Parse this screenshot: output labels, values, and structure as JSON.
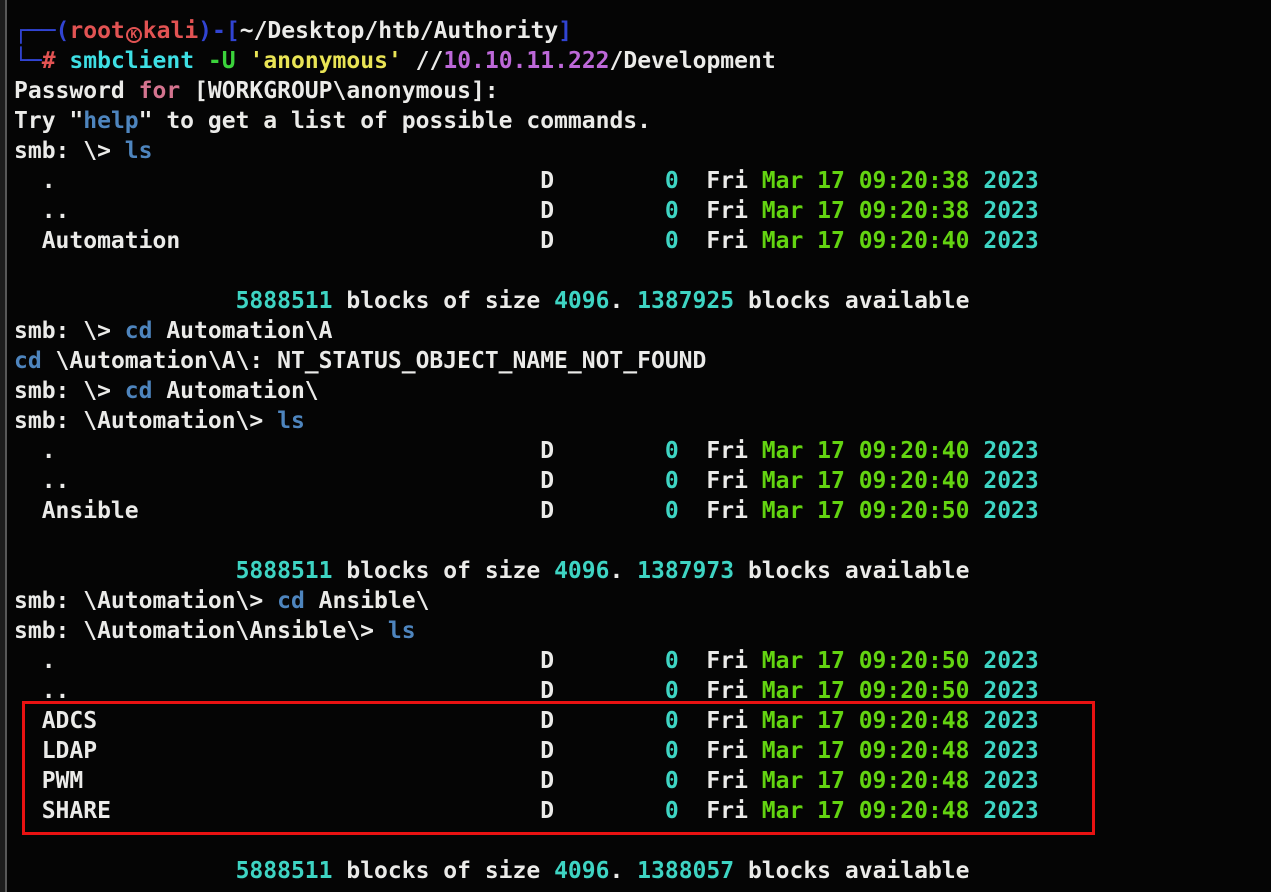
{
  "terminal": {
    "palette": {
      "fg": "#ebebe9",
      "frame": "#3144d3",
      "red": "#e25353",
      "cyan": "#3edfe4",
      "green": "#3bd33b",
      "yellow": "#e9e455",
      "purple": "#bd68d8",
      "pink": "#d4748f",
      "cmd": "#4e85be",
      "date": "#63d411",
      "num": "#3ed4c3"
    },
    "highlight": {
      "color": "#e91212"
    },
    "layout_columns": {
      "attr_col": 38,
      "size_col": 47,
      "date_col": 50
    },
    "lines": [
      {
        "type": "seg",
        "name": "prompt-line-1",
        "segs": [
          {
            "t": "┌──(",
            "c": "frame"
          },
          {
            "t": "root",
            "c": "red",
            "b": true
          },
          {
            "t": "K",
            "c": "red",
            "icon": true
          },
          {
            "t": "kali",
            "c": "red",
            "b": true
          },
          {
            "t": ")-[",
            "c": "frame"
          },
          {
            "t": "~/Desktop/htb/Authority",
            "c": "fg",
            "b": true
          },
          {
            "t": "]",
            "c": "frame"
          }
        ]
      },
      {
        "type": "seg",
        "name": "prompt-line-2",
        "segs": [
          {
            "t": "└─",
            "c": "frame"
          },
          {
            "t": "#",
            "c": "red"
          },
          {
            "t": " ",
            "c": "fg"
          },
          {
            "t": "smbclient",
            "c": "cyan"
          },
          {
            "t": " ",
            "c": "fg"
          },
          {
            "t": "-U",
            "c": "green"
          },
          {
            "t": " ",
            "c": "fg"
          },
          {
            "t": "'anonymous'",
            "c": "yellow"
          },
          {
            "t": " //",
            "c": "fg"
          },
          {
            "t": "10.10.11.222",
            "c": "purple"
          },
          {
            "t": "/Development",
            "c": "fg"
          }
        ]
      },
      {
        "type": "seg",
        "name": "password-prompt-line",
        "segs": [
          {
            "t": "Password ",
            "c": "fg"
          },
          {
            "t": "for",
            "c": "pink"
          },
          {
            "t": " [WORKGROUP\\anonymous]:",
            "c": "fg"
          }
        ]
      },
      {
        "type": "seg",
        "name": "help-hint-line",
        "segs": [
          {
            "t": "Try \"",
            "c": "fg"
          },
          {
            "t": "help",
            "c": "cmd"
          },
          {
            "t": "\" to get a list of possible commands.",
            "c": "fg"
          }
        ]
      },
      {
        "type": "seg",
        "name": "smb-prompt-line",
        "segs": [
          {
            "t": "smb: \\> ",
            "c": "fg"
          },
          {
            "t": "ls",
            "c": "cmd"
          }
        ]
      },
      {
        "type": "row",
        "name": ".",
        "attr": "D",
        "size": "0",
        "day": "Fri",
        "date": "Mar 17 09:20:38",
        "year": "2023"
      },
      {
        "type": "row",
        "name": "..",
        "attr": "D",
        "size": "0",
        "day": "Fri",
        "date": "Mar 17 09:20:38",
        "year": "2023"
      },
      {
        "type": "row",
        "name": "Automation",
        "attr": "D",
        "size": "0",
        "day": "Fri",
        "date": "Mar 17 09:20:40",
        "year": "2023"
      },
      {
        "type": "blank"
      },
      {
        "type": "blocks",
        "total": "5888511",
        "block_size": "4096",
        "available": "1387925"
      },
      {
        "type": "seg",
        "name": "smb-prompt-line",
        "segs": [
          {
            "t": "smb: \\> ",
            "c": "fg"
          },
          {
            "t": "cd",
            "c": "cmd"
          },
          {
            "t": " Automation\\A",
            "c": "fg"
          }
        ]
      },
      {
        "type": "seg",
        "name": "error-line",
        "segs": [
          {
            "t": "cd",
            "c": "cmd"
          },
          {
            "t": " \\Automation\\A\\: NT_STATUS_OBJECT_NAME_NOT_FOUND",
            "c": "fg"
          }
        ]
      },
      {
        "type": "seg",
        "name": "smb-prompt-line",
        "segs": [
          {
            "t": "smb: \\> ",
            "c": "fg"
          },
          {
            "t": "cd",
            "c": "cmd"
          },
          {
            "t": " Automation\\",
            "c": "fg"
          }
        ]
      },
      {
        "type": "seg",
        "name": "smb-prompt-line",
        "segs": [
          {
            "t": "smb: \\Automation\\> ",
            "c": "fg"
          },
          {
            "t": "ls",
            "c": "cmd"
          }
        ]
      },
      {
        "type": "row",
        "name": ".",
        "attr": "D",
        "size": "0",
        "day": "Fri",
        "date": "Mar 17 09:20:40",
        "year": "2023"
      },
      {
        "type": "row",
        "name": "..",
        "attr": "D",
        "size": "0",
        "day": "Fri",
        "date": "Mar 17 09:20:40",
        "year": "2023"
      },
      {
        "type": "row",
        "name": "Ansible",
        "attr": "D",
        "size": "0",
        "day": "Fri",
        "date": "Mar 17 09:20:50",
        "year": "2023"
      },
      {
        "type": "blank"
      },
      {
        "type": "blocks",
        "total": "5888511",
        "block_size": "4096",
        "available": "1387973"
      },
      {
        "type": "seg",
        "name": "smb-prompt-line",
        "segs": [
          {
            "t": "smb: \\Automation\\> ",
            "c": "fg"
          },
          {
            "t": "cd",
            "c": "cmd"
          },
          {
            "t": " Ansible\\",
            "c": "fg"
          }
        ]
      },
      {
        "type": "seg",
        "name": "smb-prompt-line",
        "segs": [
          {
            "t": "smb: \\Automation\\Ansible\\> ",
            "c": "fg"
          },
          {
            "t": "ls",
            "c": "cmd"
          }
        ]
      },
      {
        "type": "row",
        "name": ".",
        "attr": "D",
        "size": "0",
        "day": "Fri",
        "date": "Mar 17 09:20:50",
        "year": "2023"
      },
      {
        "type": "row",
        "name": "..",
        "attr": "D",
        "size": "0",
        "day": "Fri",
        "date": "Mar 17 09:20:50",
        "year": "2023"
      },
      {
        "type": "row",
        "name": "ADCS",
        "attr": "D",
        "size": "0",
        "day": "Fri",
        "date": "Mar 17 09:20:48",
        "year": "2023",
        "highlighted": true
      },
      {
        "type": "row",
        "name": "LDAP",
        "attr": "D",
        "size": "0",
        "day": "Fri",
        "date": "Mar 17 09:20:48",
        "year": "2023",
        "highlighted": true
      },
      {
        "type": "row",
        "name": "PWM",
        "attr": "D",
        "size": "0",
        "day": "Fri",
        "date": "Mar 17 09:20:48",
        "year": "2023",
        "highlighted": true
      },
      {
        "type": "row",
        "name": "SHARE",
        "attr": "D",
        "size": "0",
        "day": "Fri",
        "date": "Mar 17 09:20:48",
        "year": "2023",
        "highlighted": true
      },
      {
        "type": "blank"
      },
      {
        "type": "blocks",
        "total": "5888511",
        "block_size": "4096",
        "available": "1388057"
      }
    ]
  }
}
